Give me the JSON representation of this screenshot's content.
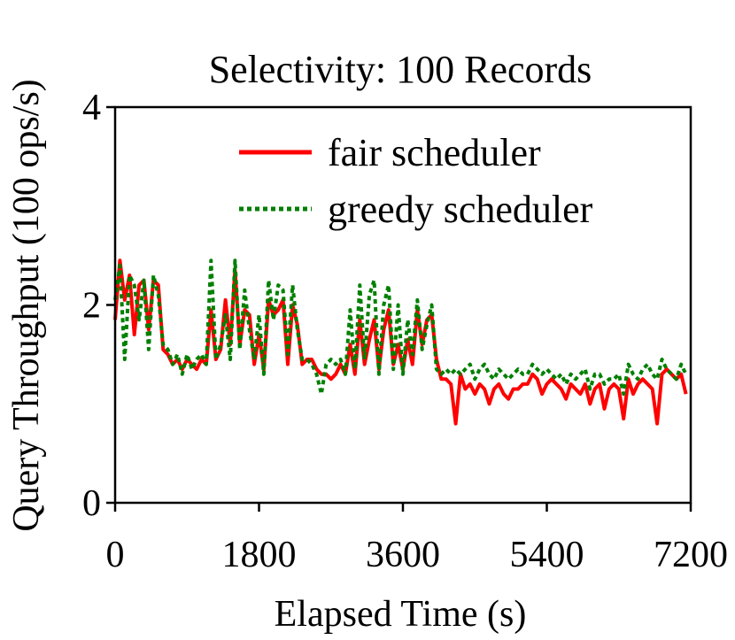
{
  "chart_data": {
    "type": "line",
    "title": "Selectivity: 100 Records",
    "xlabel": "Elapsed Time (s)",
    "ylabel": "Query Throughput (100 ops/s)",
    "xlim": [
      0,
      7200
    ],
    "ylim": [
      0,
      4
    ],
    "xticks": [
      0,
      1800,
      3600,
      5400,
      7200
    ],
    "xtick_labels": [
      "0",
      "1800",
      "3600",
      "5400",
      "7200"
    ],
    "yticks": [
      0,
      2,
      4
    ],
    "ytick_labels": [
      "0",
      "2",
      "4"
    ],
    "grid": false,
    "legend_position": "top-right",
    "series": [
      {
        "name": "fair scheduler",
        "color": "#ff0000",
        "style": "solid",
        "x": [
          0,
          60,
          120,
          180,
          240,
          300,
          360,
          420,
          480,
          540,
          600,
          660,
          720,
          780,
          840,
          900,
          960,
          1020,
          1080,
          1140,
          1200,
          1260,
          1320,
          1380,
          1440,
          1500,
          1560,
          1620,
          1680,
          1740,
          1800,
          1860,
          1920,
          1980,
          2040,
          2100,
          2160,
          2220,
          2280,
          2340,
          2400,
          2460,
          2520,
          2580,
          2640,
          2700,
          2760,
          2820,
          2880,
          2940,
          3000,
          3060,
          3120,
          3180,
          3240,
          3300,
          3360,
          3420,
          3480,
          3540,
          3600,
          3660,
          3720,
          3780,
          3840,
          3900,
          3960,
          4020,
          4080,
          4140,
          4200,
          4260,
          4320,
          4380,
          4440,
          4500,
          4560,
          4620,
          4680,
          4740,
          4800,
          4860,
          4920,
          4980,
          5040,
          5100,
          5160,
          5220,
          5280,
          5340,
          5400,
          5460,
          5520,
          5580,
          5640,
          5700,
          5760,
          5820,
          5880,
          5940,
          6000,
          6060,
          6120,
          6180,
          6240,
          6300,
          6360,
          6420,
          6480,
          6540,
          6600,
          6660,
          6720,
          6780,
          6840,
          6900,
          6960,
          7020,
          7080,
          7140
        ],
        "y": [
          1.85,
          2.45,
          2.05,
          2.3,
          1.7,
          2.2,
          2.25,
          1.75,
          2.25,
          2.2,
          1.55,
          1.5,
          1.4,
          1.45,
          1.35,
          1.45,
          1.4,
          1.35,
          1.45,
          1.4,
          1.95,
          1.45,
          1.55,
          2.05,
          1.6,
          2.35,
          1.6,
          1.95,
          1.9,
          1.4,
          1.7,
          1.35,
          2.05,
          1.9,
          1.95,
          2.05,
          1.4,
          2.0,
          1.8,
          1.4,
          1.45,
          1.45,
          1.35,
          1.3,
          1.3,
          1.25,
          1.3,
          1.4,
          1.3,
          1.6,
          1.3,
          1.85,
          1.4,
          1.65,
          1.85,
          1.35,
          1.75,
          1.95,
          1.4,
          1.6,
          1.35,
          1.65,
          1.4,
          1.95,
          1.6,
          1.85,
          1.9,
          1.45,
          1.25,
          1.25,
          1.2,
          0.8,
          1.3,
          1.15,
          1.2,
          1.1,
          1.2,
          1.15,
          1.0,
          1.15,
          1.2,
          1.1,
          1.05,
          1.15,
          1.15,
          1.2,
          1.2,
          1.3,
          1.25,
          1.1,
          1.2,
          1.25,
          1.2,
          1.15,
          1.05,
          1.2,
          1.15,
          1.1,
          1.2,
          1.0,
          1.15,
          1.2,
          0.95,
          1.15,
          1.2,
          1.15,
          0.85,
          1.25,
          1.1,
          1.2,
          1.25,
          1.2,
          1.15,
          0.8,
          1.3,
          1.35,
          1.3,
          1.25,
          1.3,
          1.1
        ]
      },
      {
        "name": "greedy scheduler",
        "color": "#008000",
        "style": "dotted",
        "x": [
          0,
          60,
          120,
          180,
          240,
          300,
          360,
          420,
          480,
          540,
          600,
          660,
          720,
          780,
          840,
          900,
          960,
          1020,
          1080,
          1140,
          1200,
          1260,
          1320,
          1380,
          1440,
          1500,
          1560,
          1620,
          1680,
          1740,
          1800,
          1860,
          1920,
          1980,
          2040,
          2100,
          2160,
          2220,
          2280,
          2340,
          2400,
          2460,
          2520,
          2580,
          2640,
          2700,
          2760,
          2820,
          2880,
          2940,
          3000,
          3060,
          3120,
          3180,
          3240,
          3300,
          3360,
          3420,
          3480,
          3540,
          3600,
          3660,
          3720,
          3780,
          3840,
          3900,
          3960,
          4020,
          4080,
          4140,
          4200,
          4260,
          4320,
          4380,
          4440,
          4500,
          4560,
          4620,
          4680,
          4740,
          4800,
          4860,
          4920,
          4980,
          5040,
          5100,
          5160,
          5220,
          5280,
          5340,
          5400,
          5460,
          5520,
          5580,
          5640,
          5700,
          5760,
          5820,
          5880,
          5940,
          6000,
          6060,
          6120,
          6180,
          6240,
          6300,
          6360,
          6420,
          6480,
          6540,
          6600,
          6660,
          6720,
          6780,
          6840,
          6900,
          6960,
          7020,
          7080,
          7140
        ],
        "y": [
          2.05,
          2.4,
          1.45,
          2.3,
          2.2,
          1.85,
          2.25,
          1.55,
          2.3,
          2.1,
          1.6,
          1.55,
          1.4,
          1.5,
          1.3,
          1.5,
          1.35,
          1.45,
          1.5,
          1.4,
          2.45,
          1.45,
          1.6,
          1.9,
          1.45,
          2.45,
          1.55,
          2.15,
          1.75,
          1.45,
          1.9,
          1.3,
          2.25,
          1.85,
          2.2,
          2.15,
          1.5,
          2.2,
          1.75,
          1.45,
          1.45,
          1.4,
          1.3,
          1.1,
          1.4,
          1.45,
          1.4,
          1.45,
          1.3,
          1.95,
          1.35,
          2.2,
          1.45,
          2.1,
          2.25,
          1.3,
          2.0,
          2.2,
          1.35,
          2.0,
          1.3,
          1.85,
          1.5,
          2.05,
          1.55,
          1.8,
          2.0,
          1.35,
          1.3,
          1.35,
          1.3,
          1.35,
          1.3,
          1.35,
          1.4,
          1.25,
          1.35,
          1.4,
          1.3,
          1.25,
          1.35,
          1.3,
          1.25,
          1.3,
          1.35,
          1.3,
          1.3,
          1.4,
          1.35,
          1.3,
          1.35,
          1.3,
          1.25,
          1.3,
          1.2,
          1.3,
          1.25,
          1.3,
          1.35,
          1.15,
          1.3,
          1.3,
          1.2,
          1.25,
          1.25,
          1.3,
          1.1,
          1.4,
          1.3,
          1.25,
          1.35,
          1.4,
          1.3,
          1.25,
          1.45,
          1.35,
          1.3,
          1.25,
          1.4,
          1.3
        ]
      }
    ]
  }
}
